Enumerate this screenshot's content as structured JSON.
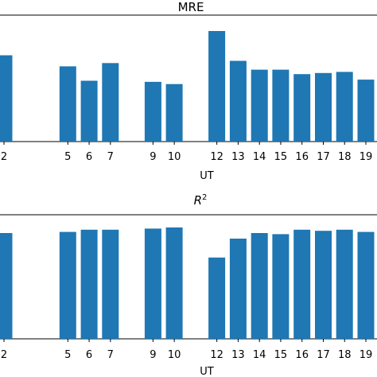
{
  "chart_data": [
    {
      "type": "bar",
      "title": "MRE",
      "xlabel": "UT",
      "ylabel": "",
      "color": "#1f77b4",
      "x": [
        2,
        5,
        6,
        7,
        9,
        10,
        12,
        13,
        14,
        15,
        16,
        17,
        18,
        19
      ],
      "tick_labels": [
        "2",
        "5",
        "6",
        "7",
        "9",
        "10",
        "12",
        "13",
        "14",
        "15",
        "16",
        "17",
        "18",
        "19"
      ],
      "values": [
        0.78,
        0.68,
        0.55,
        0.71,
        0.54,
        0.52,
        1.0,
        0.73,
        0.65,
        0.65,
        0.61,
        0.62,
        0.63,
        0.56
      ],
      "ylim": [
        0,
        1.05
      ]
    },
    {
      "type": "bar",
      "title": "R²",
      "xlabel": "UT",
      "ylabel": "",
      "color": "#1f77b4",
      "x": [
        2,
        5,
        6,
        7,
        9,
        10,
        12,
        13,
        14,
        15,
        16,
        17,
        18,
        19
      ],
      "tick_labels": [
        "2",
        "5",
        "6",
        "7",
        "9",
        "10",
        "12",
        "13",
        "14",
        "15",
        "16",
        "17",
        "18",
        "19"
      ],
      "values": [
        0.95,
        0.96,
        0.98,
        0.98,
        0.99,
        1.0,
        0.73,
        0.9,
        0.95,
        0.94,
        0.98,
        0.97,
        0.98,
        0.96
      ],
      "ylim": [
        0,
        1.05
      ]
    }
  ]
}
